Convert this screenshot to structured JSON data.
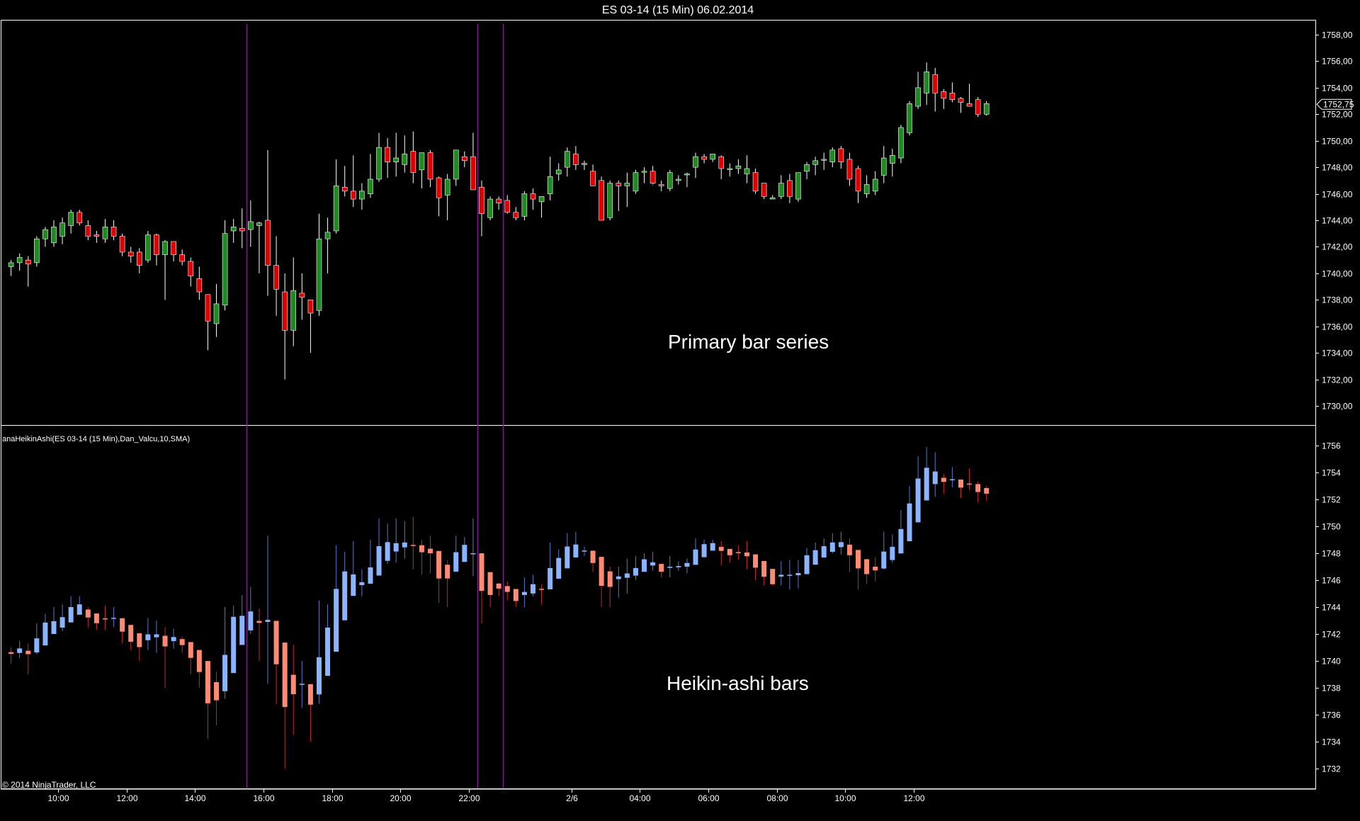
{
  "window": {
    "title": "ES 03-14 (15 Min)  06.02.2014",
    "copyright": "© 2014 NinjaTrader, LLC"
  },
  "colors": {
    "background": "#000000",
    "frame": "#ffffff",
    "up_candle": "#1f8a1f",
    "down_candle": "#e00000",
    "ha_up": "#8ab4ff",
    "ha_down": "#ff8a73",
    "session_line": "#7a1f8a",
    "price_marker_bg": "#000000"
  },
  "chart_data": [
    {
      "type": "candlestick",
      "panel": "primary",
      "annotation": "Primary bar series",
      "y_ticks": [
        "1730,00",
        "1732,00",
        "1734,00",
        "1736,00",
        "1738,00",
        "1740,00",
        "1742,00",
        "1744,00",
        "1746,00",
        "1748,00",
        "1750,00",
        "1752,00",
        "1754,00",
        "1756,00",
        "1758,00"
      ],
      "ylim": [
        1729,
        1758.5
      ],
      "last_price_label": "1752,75",
      "last_price": 1752.75,
      "x_ticks": [
        "10:00",
        "12:00",
        "14:00",
        "16:00",
        "18:00",
        "20:00",
        "22:00",
        "2/6",
        "04:00",
        "06:00",
        "08:00",
        "10:00",
        "12:00"
      ],
      "x_tick_bar_index": [
        5,
        13,
        21,
        29,
        37,
        45,
        53,
        65,
        73,
        81,
        89,
        97,
        105
      ],
      "session_break_bar_index": [
        27.5,
        54.5,
        57.5
      ],
      "bars": [
        [
          1740.5,
          1741.0,
          1739.8,
          1740.8
        ],
        [
          1740.8,
          1741.5,
          1740.2,
          1741.2
        ],
        [
          1741.0,
          1741.3,
          1739.0,
          1740.7
        ],
        [
          1740.8,
          1742.8,
          1740.5,
          1742.6
        ],
        [
          1742.6,
          1743.5,
          1742.0,
          1743.3
        ],
        [
          1742.3,
          1744.0,
          1742.0,
          1743.5
        ],
        [
          1742.8,
          1744.2,
          1742.2,
          1743.8
        ],
        [
          1743.6,
          1744.8,
          1743.0,
          1744.6
        ],
        [
          1744.6,
          1744.8,
          1743.6,
          1743.8
        ],
        [
          1743.6,
          1744.0,
          1742.5,
          1742.8
        ],
        [
          1742.9,
          1743.2,
          1742.3,
          1742.8
        ],
        [
          1742.6,
          1744.1,
          1742.3,
          1743.5
        ],
        [
          1743.5,
          1744.0,
          1742.5,
          1742.8
        ],
        [
          1742.8,
          1743.0,
          1741.3,
          1741.6
        ],
        [
          1741.6,
          1742.0,
          1740.8,
          1741.3
        ],
        [
          1741.6,
          1741.9,
          1740.0,
          1740.6
        ],
        [
          1741.0,
          1743.2,
          1740.8,
          1742.9
        ],
        [
          1742.9,
          1743.0,
          1740.6,
          1741.4
        ],
        [
          1741.4,
          1742.5,
          1738.0,
          1742.4
        ],
        [
          1742.4,
          1742.4,
          1740.9,
          1741.4
        ],
        [
          1741.4,
          1741.8,
          1740.6,
          1740.9
        ],
        [
          1740.9,
          1741.2,
          1739.0,
          1739.8
        ],
        [
          1739.6,
          1740.5,
          1738.0,
          1738.6
        ],
        [
          1738.4,
          1738.4,
          1734.2,
          1736.4
        ],
        [
          1736.2,
          1739.2,
          1735.2,
          1737.7
        ],
        [
          1737.6,
          1744.0,
          1737.2,
          1743.0
        ],
        [
          1743.2,
          1744.1,
          1742.3,
          1743.5
        ],
        [
          1743.4,
          1744.9,
          1741.9,
          1743.2
        ],
        [
          1743.3,
          1745.5,
          1742.0,
          1743.9
        ],
        [
          1743.6,
          1743.9,
          1740.0,
          1743.8
        ],
        [
          1744.0,
          1749.3,
          1738.3,
          1740.6
        ],
        [
          1740.6,
          1742.8,
          1736.8,
          1738.8
        ],
        [
          1738.6,
          1740.0,
          1732.0,
          1735.7
        ],
        [
          1735.7,
          1741.2,
          1734.5,
          1738.7
        ],
        [
          1738.5,
          1740.0,
          1736.5,
          1738.2
        ],
        [
          1738.0,
          1738.0,
          1734.0,
          1737.0
        ],
        [
          1737.2,
          1744.5,
          1736.8,
          1742.6
        ],
        [
          1742.6,
          1744.2,
          1740.0,
          1743.1
        ],
        [
          1743.2,
          1748.6,
          1743.0,
          1746.6
        ],
        [
          1746.5,
          1748.1,
          1745.8,
          1746.2
        ],
        [
          1746.2,
          1748.9,
          1745.0,
          1745.6
        ],
        [
          1745.6,
          1746.8,
          1744.8,
          1746.2
        ],
        [
          1746.0,
          1749.0,
          1745.7,
          1747.1
        ],
        [
          1747.1,
          1750.6,
          1746.9,
          1749.5
        ],
        [
          1749.5,
          1750.2,
          1747.2,
          1748.4
        ],
        [
          1748.4,
          1750.6,
          1747.3,
          1748.7
        ],
        [
          1748.2,
          1750.4,
          1747.6,
          1749.0
        ],
        [
          1749.2,
          1750.7,
          1746.8,
          1747.6
        ],
        [
          1747.8,
          1749.0,
          1746.4,
          1749.1
        ],
        [
          1749.1,
          1749.3,
          1746.5,
          1747.1
        ],
        [
          1747.2,
          1747.3,
          1744.3,
          1745.7
        ],
        [
          1745.9,
          1747.5,
          1744.0,
          1747.1
        ],
        [
          1747.1,
          1749.3,
          1746.6,
          1749.3
        ],
        [
          1748.8,
          1749.2,
          1748.0,
          1748.5
        ],
        [
          1748.8,
          1750.6,
          1746.3,
          1746.3
        ],
        [
          1746.5,
          1747.0,
          1742.8,
          1744.5
        ],
        [
          1744.2,
          1745.8,
          1744.0,
          1745.6
        ],
        [
          1745.6,
          1745.8,
          1744.8,
          1745.3
        ],
        [
          1745.5,
          1745.9,
          1744.5,
          1744.6
        ],
        [
          1744.6,
          1745.0,
          1744.0,
          1744.2
        ],
        [
          1744.3,
          1746.2,
          1744.0,
          1746.0
        ],
        [
          1746.0,
          1746.4,
          1744.8,
          1745.6
        ],
        [
          1745.4,
          1745.7,
          1744.2,
          1745.8
        ],
        [
          1746.0,
          1748.8,
          1745.5,
          1747.3
        ],
        [
          1747.5,
          1748.3,
          1747.0,
          1747.8
        ],
        [
          1748.0,
          1749.5,
          1747.3,
          1749.2
        ],
        [
          1749.0,
          1749.6,
          1747.8,
          1748.2
        ],
        [
          1748.2,
          1748.5,
          1747.8,
          1748.3
        ],
        [
          1747.7,
          1748.2,
          1746.6,
          1746.6
        ],
        [
          1747.0,
          1747.3,
          1744.0,
          1744.0
        ],
        [
          1744.2,
          1747.0,
          1744.0,
          1746.8
        ],
        [
          1746.8,
          1747.0,
          1744.7,
          1746.6
        ],
        [
          1746.6,
          1747.6,
          1745.0,
          1746.8
        ],
        [
          1746.2,
          1747.8,
          1746.0,
          1747.6
        ],
        [
          1747.7,
          1748.0,
          1746.8,
          1747.7
        ],
        [
          1747.7,
          1748.1,
          1746.7,
          1746.8
        ],
        [
          1746.7,
          1747.0,
          1746.2,
          1746.6
        ],
        [
          1746.4,
          1747.8,
          1746.2,
          1747.6
        ],
        [
          1747.0,
          1747.4,
          1746.7,
          1747.1
        ],
        [
          1747.5,
          1747.6,
          1746.5,
          1747.5
        ],
        [
          1748.0,
          1749.1,
          1747.2,
          1748.8
        ],
        [
          1748.8,
          1749.0,
          1748.3,
          1748.6
        ],
        [
          1748.6,
          1749.0,
          1748.4,
          1749.0
        ],
        [
          1748.8,
          1748.9,
          1747.1,
          1747.9
        ],
        [
          1747.9,
          1748.3,
          1747.3,
          1747.9
        ],
        [
          1747.9,
          1748.6,
          1747.5,
          1748.1
        ],
        [
          1747.5,
          1748.9,
          1746.8,
          1747.9
        ],
        [
          1747.6,
          1747.9,
          1746.0,
          1746.2
        ],
        [
          1746.8,
          1746.8,
          1745.6,
          1745.8
        ],
        [
          1745.6,
          1745.9,
          1745.6,
          1745.7
        ],
        [
          1745.8,
          1747.4,
          1745.6,
          1746.8
        ],
        [
          1747.0,
          1747.5,
          1745.3,
          1745.8
        ],
        [
          1745.6,
          1747.5,
          1745.4,
          1747.6
        ],
        [
          1747.7,
          1748.4,
          1747.1,
          1748.2
        ],
        [
          1748.2,
          1748.8,
          1747.4,
          1748.5
        ],
        [
          1748.6,
          1749.1,
          1747.8,
          1748.6
        ],
        [
          1748.4,
          1749.5,
          1748.0,
          1749.3
        ],
        [
          1749.4,
          1749.6,
          1747.9,
          1748.4
        ],
        [
          1748.6,
          1749.1,
          1746.6,
          1747.1
        ],
        [
          1747.9,
          1748.1,
          1745.3,
          1746.2
        ],
        [
          1746.0,
          1747.4,
          1745.7,
          1746.7
        ],
        [
          1746.2,
          1747.7,
          1745.9,
          1747.1
        ],
        [
          1747.4,
          1749.6,
          1746.8,
          1748.7
        ],
        [
          1748.3,
          1749.4,
          1747.3,
          1748.9
        ],
        [
          1748.7,
          1751.2,
          1748.3,
          1751.0
        ],
        [
          1750.6,
          1753.0,
          1750.4,
          1752.8
        ],
        [
          1752.6,
          1755.2,
          1752.4,
          1754.0
        ],
        [
          1753.6,
          1755.9,
          1752.7,
          1755.2
        ],
        [
          1755.0,
          1755.5,
          1752.2,
          1753.6
        ],
        [
          1753.7,
          1753.9,
          1752.4,
          1753.2
        ],
        [
          1753.6,
          1754.4,
          1752.9,
          1753.1
        ],
        [
          1753.2,
          1753.3,
          1752.1,
          1752.9
        ],
        [
          1752.8,
          1754.3,
          1752.7,
          1752.6
        ],
        [
          1753.1,
          1753.3,
          1751.8,
          1752.0
        ],
        [
          1752.0,
          1753.0,
          1751.9,
          1752.8
        ]
      ]
    },
    {
      "type": "candlestick",
      "panel": "indicator",
      "indicator_label": "anaHeikinAshi(ES 03-14 (15 Min),Dan_Valcu,10,SMA)",
      "annotation": "Heikin-ashi bars",
      "y_ticks": [
        "1732",
        "1734",
        "1736",
        "1738",
        "1740",
        "1742",
        "1744",
        "1746",
        "1748",
        "1750",
        "1752",
        "1754",
        "1756"
      ],
      "ylim": [
        1731,
        1757.5
      ],
      "bars": "derived from primary series (Heikin-Ashi transform)"
    }
  ]
}
